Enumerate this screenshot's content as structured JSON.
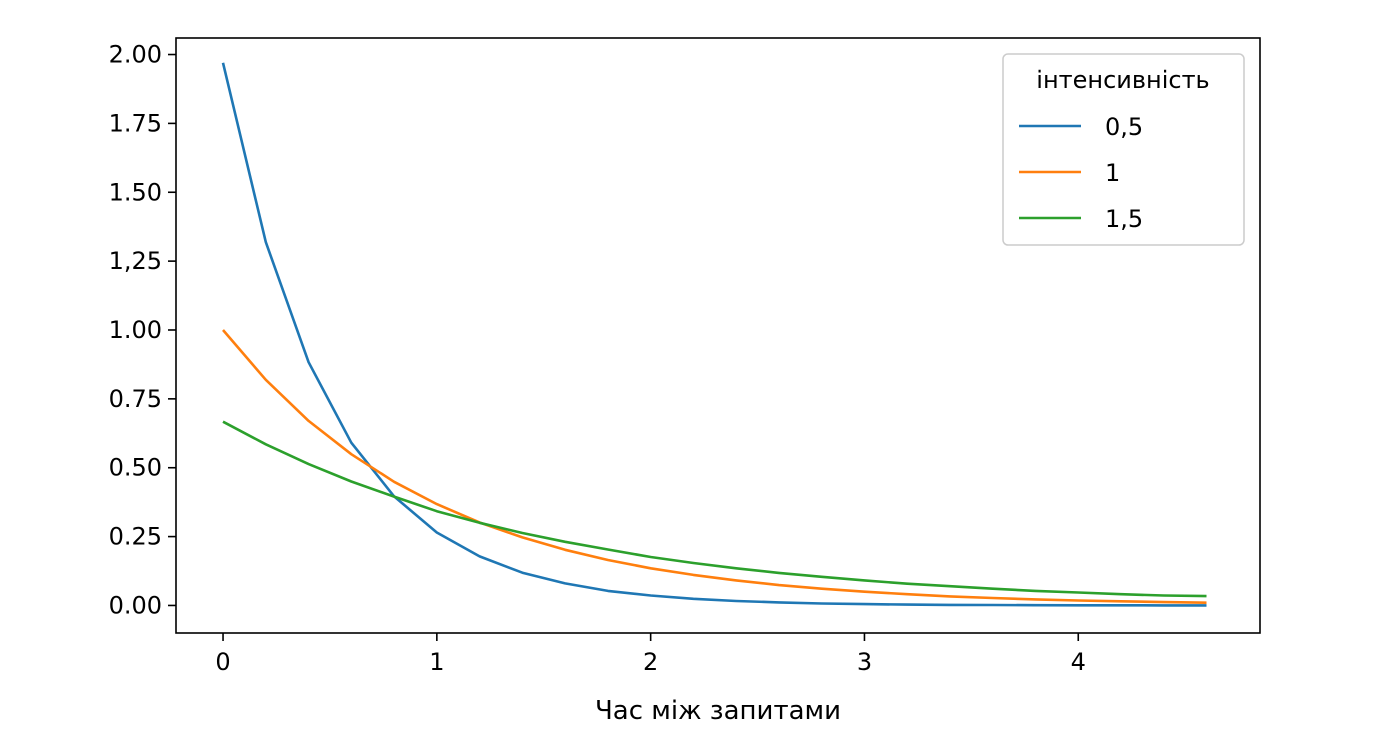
{
  "chart_data": {
    "type": "line",
    "title": "",
    "xlabel": "Час між запитами",
    "ylabel": "",
    "xlim": [
      -0.22,
      4.85
    ],
    "ylim": [
      -0.1,
      2.06
    ],
    "grid": false,
    "legend_position": "top-right",
    "legend_title": "інтенсивність",
    "x_ticks": [
      {
        "value": 0,
        "label": "0"
      },
      {
        "value": 1,
        "label": "1"
      },
      {
        "value": 2,
        "label": "2"
      },
      {
        "value": 3,
        "label": "3"
      },
      {
        "value": 4,
        "label": "4"
      }
    ],
    "y_ticks": [
      {
        "value": 0,
        "label": "0.00"
      },
      {
        "value": 0.25,
        "label": "0.25"
      },
      {
        "value": 0.5,
        "label": "0.50"
      },
      {
        "value": 0.75,
        "label": "0.75"
      },
      {
        "value": 1.0,
        "label": "1.00"
      },
      {
        "value": 1.25,
        "label": "1,25"
      },
      {
        "value": 1.5,
        "label": "1.50"
      },
      {
        "value": 1.75,
        "label": "1.75"
      },
      {
        "value": 2.0,
        "label": "2.00"
      }
    ],
    "x": [
      0,
      0.2,
      0.4,
      0.6,
      0.8,
      1.0,
      1.2,
      1.4,
      1.6,
      1.8,
      2.0,
      2.2,
      2.4,
      2.6,
      2.8,
      3.0,
      3.2,
      3.4,
      3.6,
      3.8,
      4.0,
      4.2,
      4.4,
      4.6
    ],
    "series": [
      {
        "name": "0,5",
        "color": "#1f77b4",
        "values": [
          1.97,
          1.319,
          0.883,
          0.591,
          0.396,
          0.265,
          0.178,
          0.119,
          0.08,
          0.053,
          0.036,
          0.024,
          0.016,
          0.011,
          0.007,
          0.005,
          0.003,
          0.002,
          0.0015,
          0.001,
          0.0007,
          0.0004,
          0.0003,
          0.0002
        ]
      },
      {
        "name": "1",
        "color": "#ff7f0e",
        "values": [
          1.0,
          0.819,
          0.67,
          0.549,
          0.449,
          0.368,
          0.301,
          0.247,
          0.202,
          0.165,
          0.135,
          0.111,
          0.091,
          0.074,
          0.061,
          0.05,
          0.041,
          0.033,
          0.027,
          0.022,
          0.018,
          0.015,
          0.012,
          0.01
        ]
      },
      {
        "name": "1,5",
        "color": "#2ca02c",
        "values": [
          0.667,
          0.585,
          0.513,
          0.45,
          0.395,
          0.342,
          0.3,
          0.263,
          0.231,
          0.203,
          0.176,
          0.154,
          0.135,
          0.118,
          0.104,
          0.091,
          0.079,
          0.07,
          0.061,
          0.053,
          0.047,
          0.041,
          0.036,
          0.034
        ]
      }
    ]
  }
}
